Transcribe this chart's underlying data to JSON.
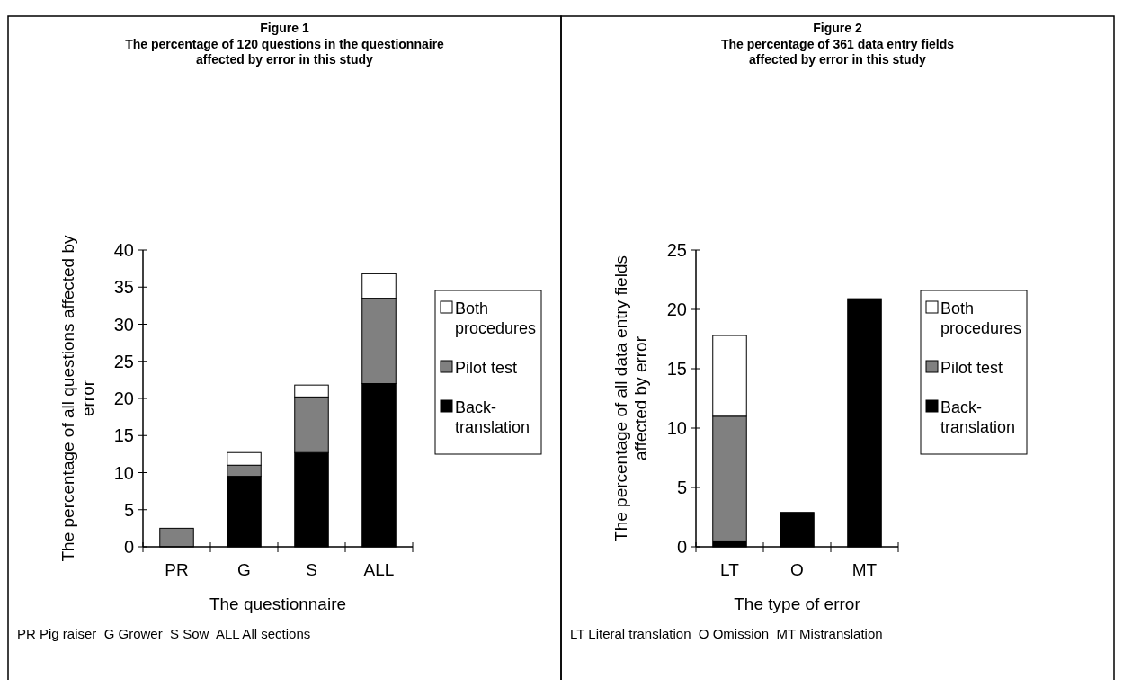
{
  "chart_data": [
    {
      "type": "bar",
      "title": "Figure 1",
      "subtitle": "The percentage of 120 questions in the questionnaire\naffected by error in this study",
      "xlabel": "The questionnaire",
      "ylabel": "The percentage of all questions affected by\nerror",
      "categories": [
        "PR",
        "G",
        "S",
        "ALL"
      ],
      "stacked": true,
      "ylim": [
        0,
        40
      ],
      "yticks": [
        0,
        5,
        10,
        15,
        20,
        25,
        30,
        35,
        40
      ],
      "legend": "right",
      "annotations": [
        "PR Pig raiser  G Grower  S Sow  ALL All sections"
      ],
      "series": [
        {
          "name": "Back-translation",
          "color": "#000000",
          "values": [
            0,
            9.5,
            12.7,
            22
          ]
        },
        {
          "name": "Pilot test",
          "color": "#808080",
          "values": [
            2.5,
            1.5,
            7.5,
            11.5
          ]
        },
        {
          "name": "Both procedures",
          "color": "#ffffff",
          "values": [
            0,
            1.7,
            1.6,
            3.3
          ]
        }
      ]
    },
    {
      "type": "bar",
      "title": "Figure 2",
      "subtitle": "The percentage of 361 data entry fields\naffected by error in this study",
      "xlabel": "The type of error",
      "ylabel": "The percentage of all data entry fields\naffected by error",
      "categories": [
        "LT",
        "O",
        "MT"
      ],
      "stacked": true,
      "ylim": [
        0,
        25
      ],
      "yticks": [
        0,
        5,
        10,
        15,
        20,
        25
      ],
      "legend": "right",
      "annotations": [
        "LT Literal translation  O Omission  MT Mistranslation"
      ],
      "series": [
        {
          "name": "Back-translation",
          "color": "#000000",
          "values": [
            0.5,
            2.9,
            20.9
          ]
        },
        {
          "name": "Pilot test",
          "color": "#808080",
          "values": [
            10.5,
            0,
            0
          ]
        },
        {
          "name": "Both procedures",
          "color": "#ffffff",
          "values": [
            6.8,
            0,
            0
          ]
        }
      ]
    }
  ]
}
